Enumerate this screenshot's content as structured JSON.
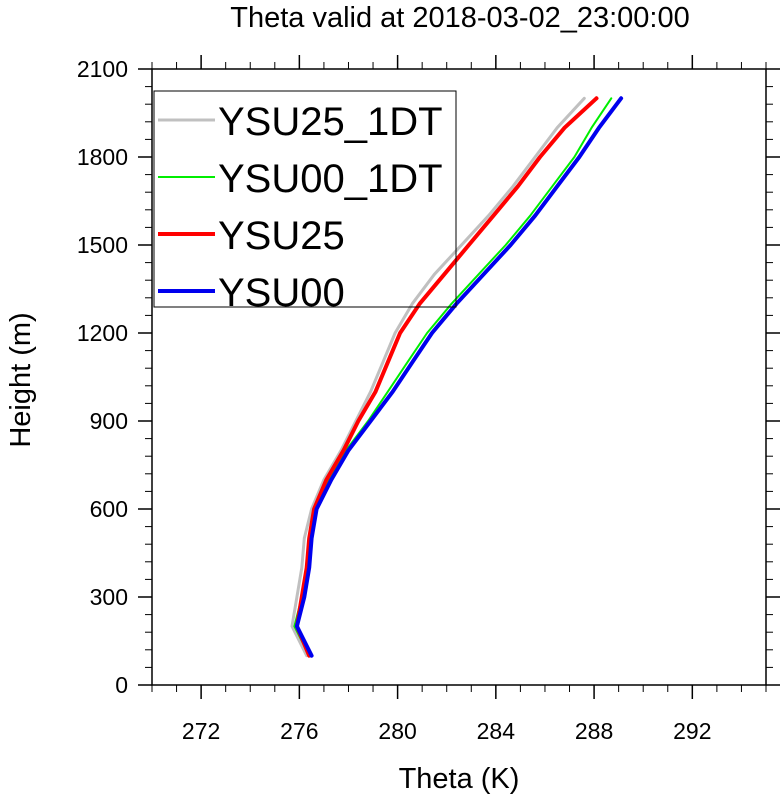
{
  "chart_data": {
    "type": "line",
    "title": "Theta valid at 2018-03-02_23:00:00",
    "xlabel": "Theta (K)",
    "ylabel": "Height (m)",
    "xlim": [
      270,
      295
    ],
    "ylim": [
      0,
      2100
    ],
    "xticks": [
      272,
      276,
      280,
      284,
      288,
      292
    ],
    "yticks": [
      0,
      300,
      600,
      900,
      1200,
      1500,
      1800,
      2100
    ],
    "grid": false,
    "legend_position": "top-left",
    "series": [
      {
        "name": "YSU25_1DT",
        "color": "#c0c0c0",
        "stroke_width": 3,
        "points": [
          [
            276.3,
            100
          ],
          [
            275.7,
            200
          ],
          [
            275.9,
            300
          ],
          [
            276.1,
            400
          ],
          [
            276.2,
            500
          ],
          [
            276.5,
            600
          ],
          [
            277.0,
            700
          ],
          [
            277.7,
            800
          ],
          [
            278.3,
            900
          ],
          [
            278.9,
            1000
          ],
          [
            279.4,
            1100
          ],
          [
            279.9,
            1200
          ],
          [
            280.6,
            1300
          ],
          [
            281.5,
            1400
          ],
          [
            282.6,
            1500
          ],
          [
            283.7,
            1600
          ],
          [
            284.7,
            1700
          ],
          [
            285.6,
            1800
          ],
          [
            286.5,
            1900
          ],
          [
            287.6,
            2000
          ]
        ]
      },
      {
        "name": "YSU00_1DT",
        "color": "#00ee00",
        "stroke_width": 2,
        "points": [
          [
            276.4,
            100
          ],
          [
            275.8,
            200
          ],
          [
            276.1,
            300
          ],
          [
            276.3,
            400
          ],
          [
            276.4,
            500
          ],
          [
            276.6,
            600
          ],
          [
            277.2,
            700
          ],
          [
            277.9,
            800
          ],
          [
            278.8,
            900
          ],
          [
            279.6,
            1000
          ],
          [
            280.4,
            1100
          ],
          [
            281.2,
            1200
          ],
          [
            282.2,
            1300
          ],
          [
            283.3,
            1400
          ],
          [
            284.4,
            1500
          ],
          [
            285.4,
            1600
          ],
          [
            286.3,
            1700
          ],
          [
            287.2,
            1800
          ],
          [
            287.9,
            1900
          ],
          [
            288.7,
            2000
          ]
        ]
      },
      {
        "name": "YSU25",
        "color": "#ff0000",
        "stroke_width": 4,
        "points": [
          [
            276.4,
            100
          ],
          [
            275.9,
            200
          ],
          [
            276.1,
            300
          ],
          [
            276.3,
            400
          ],
          [
            276.4,
            500
          ],
          [
            276.6,
            600
          ],
          [
            277.1,
            700
          ],
          [
            277.8,
            800
          ],
          [
            278.4,
            900
          ],
          [
            279.1,
            1000
          ],
          [
            279.6,
            1100
          ],
          [
            280.1,
            1200
          ],
          [
            280.9,
            1300
          ],
          [
            281.9,
            1400
          ],
          [
            282.9,
            1500
          ],
          [
            283.9,
            1600
          ],
          [
            284.9,
            1700
          ],
          [
            285.8,
            1800
          ],
          [
            286.8,
            1900
          ],
          [
            288.1,
            2000
          ]
        ]
      },
      {
        "name": "YSU00",
        "color": "#0000ee",
        "stroke_width": 4,
        "points": [
          [
            276.5,
            100
          ],
          [
            275.9,
            200
          ],
          [
            276.2,
            300
          ],
          [
            276.4,
            400
          ],
          [
            276.5,
            500
          ],
          [
            276.7,
            600
          ],
          [
            277.3,
            700
          ],
          [
            278.0,
            800
          ],
          [
            278.9,
            900
          ],
          [
            279.8,
            1000
          ],
          [
            280.6,
            1100
          ],
          [
            281.4,
            1200
          ],
          [
            282.4,
            1300
          ],
          [
            283.5,
            1400
          ],
          [
            284.6,
            1500
          ],
          [
            285.6,
            1600
          ],
          [
            286.5,
            1700
          ],
          [
            287.4,
            1800
          ],
          [
            288.2,
            1900
          ],
          [
            289.1,
            2000
          ]
        ]
      }
    ]
  }
}
